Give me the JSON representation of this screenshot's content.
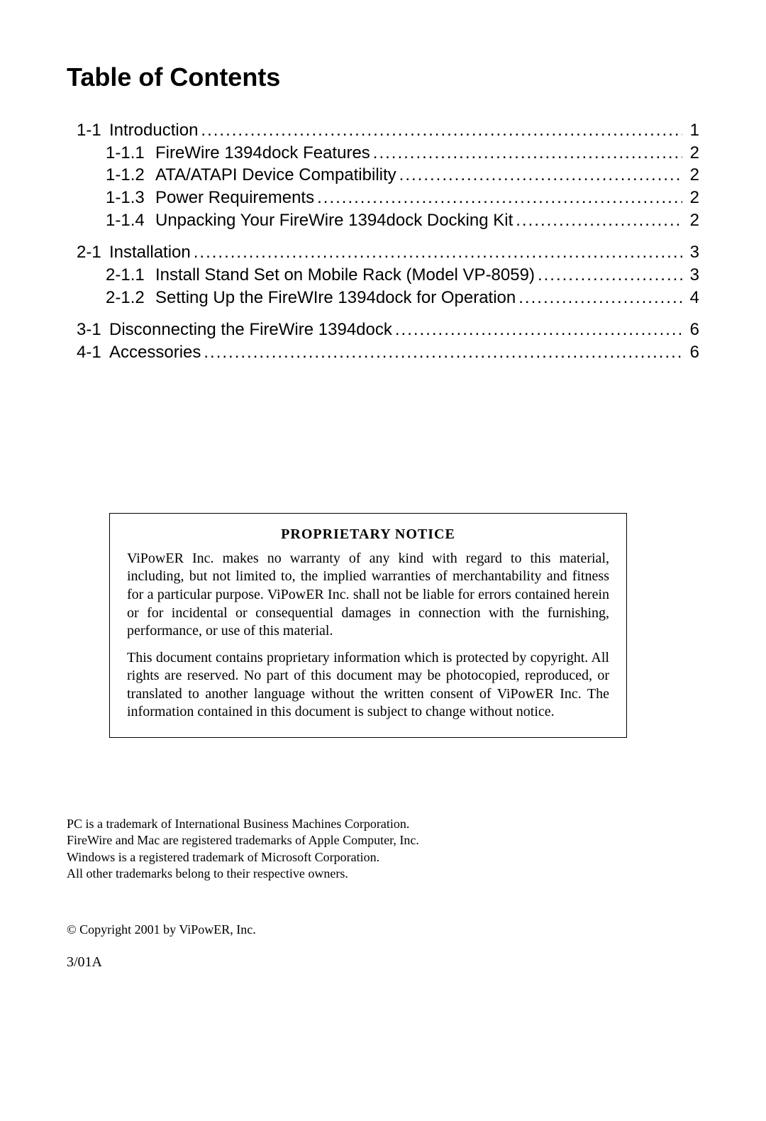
{
  "title": "Table of Contents",
  "toc": {
    "groups": [
      {
        "top": {
          "num": "1-1",
          "label": "Introduction",
          "page": "1"
        },
        "subs": [
          {
            "num": "1-1.1",
            "label": "FireWire 1394dock Features",
            "page": "2"
          },
          {
            "num": "1-1.2",
            "label": "ATA/ATAPI Device Compatibility",
            "page": "2"
          },
          {
            "num": "1-1.3",
            "label": "Power Requirements",
            "page": "2"
          },
          {
            "num": "1-1.4",
            "label": "Unpacking Your FireWire 1394dock Docking Kit",
            "page": "2"
          }
        ]
      },
      {
        "top": {
          "num": "2-1",
          "label": "Installation",
          "page": "3"
        },
        "subs": [
          {
            "num": "2-1.1",
            "label": "Install Stand Set on Mobile Rack (Model VP-8059)",
            "page": "3"
          },
          {
            "num": "2-1.2",
            "label": "Setting Up the FireWIre 1394dock for Operation",
            "page": "4"
          }
        ]
      },
      {
        "top": {
          "num": "3-1",
          "label": "Disconnecting the FireWire 1394dock",
          "page": "6"
        },
        "subs": []
      },
      {
        "top": {
          "num": "4-1",
          "label": "Accessories",
          "page": "6"
        },
        "subs": []
      }
    ]
  },
  "notice": {
    "title": "PROPRIETARY NOTICE",
    "para1": "ViPowER Inc. makes no warranty of any kind with regard to this material, including, but not limited to, the implied warranties of merchantability and fitness for a particular purpose. ViPowER Inc. shall not be liable for errors contained herein or for incidental or consequential damages in connection with the furnishing, performance, or use of this material.",
    "para2": "This document contains proprietary information which is protected by copyright. All rights are reserved. No part of this document may be photocopied, reproduced, or translated to another language without the written consent of ViPowER Inc. The information contained in this document is subject to change without notice."
  },
  "trademarks": {
    "line1": "PC is a trademark of International Business Machines Corporation.",
    "line2": "FireWire and Mac are registered trademarks of Apple Computer, Inc.",
    "line3": "Windows is a registered trademark of Microsoft Corporation.",
    "line4": "All other trademarks belong to their respective owners."
  },
  "copyright": "© Copyright 2001 by ViPowER, Inc.",
  "revcode": "3/01A"
}
